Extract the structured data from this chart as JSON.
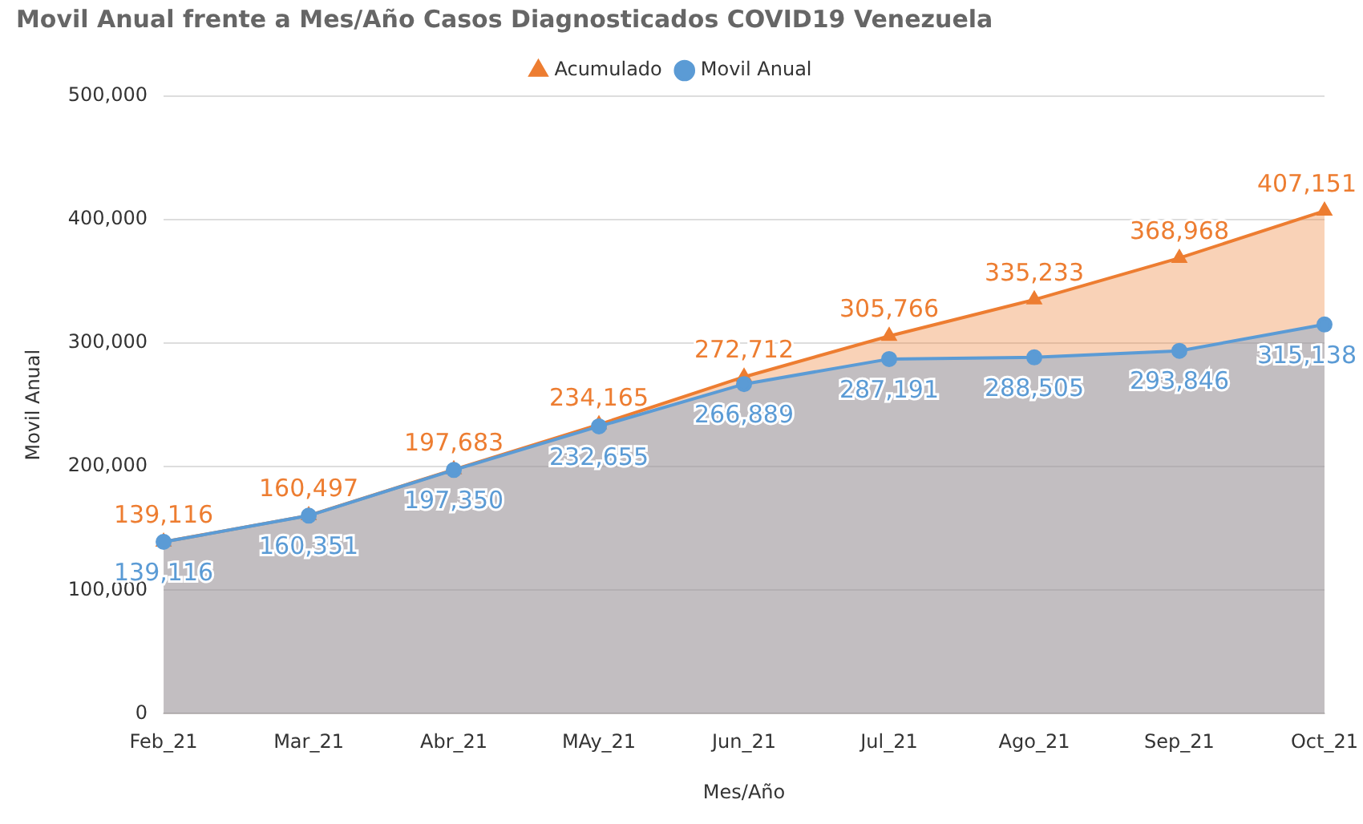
{
  "chart_data": {
    "type": "area",
    "title": "Movil Anual frente a Mes/Año Casos Diagnosticados COVID19 Venezuela",
    "xlabel": "Mes/Año",
    "ylabel": "Movil Anual",
    "categories": [
      "Feb_21",
      "Mar_21",
      "Abr_21",
      "MAy_21",
      "Jun_21",
      "Jul_21",
      "Ago_21",
      "Sep_21",
      "Oct_21"
    ],
    "series": [
      {
        "name": "Movil Anual",
        "color": "#5b9bd5",
        "marker": "circle",
        "values": [
          139116,
          160351,
          197350,
          232655,
          266889,
          287191,
          288505,
          293846,
          315138
        ],
        "value_labels": [
          "139,116",
          "160,351",
          "197,350",
          "232,655",
          "266,889",
          "287,191",
          "288,505",
          "293,846",
          "315,138"
        ]
      },
      {
        "name": "Acumulado",
        "color": "#ed7d31",
        "marker": "triangle",
        "values": [
          139116,
          160497,
          197683,
          234165,
          272712,
          305766,
          335233,
          368968,
          407151
        ],
        "value_labels": [
          "139,116",
          "160,497",
          "197,683",
          "234,165",
          "272,712",
          "305,766",
          "335,233",
          "368,968",
          "407,151"
        ]
      }
    ],
    "ylim": [
      0,
      500000
    ],
    "yticks": [
      {
        "value": 0,
        "label": "0"
      },
      {
        "value": 100000,
        "label": "100,000"
      },
      {
        "value": 200000,
        "label": "200,000"
      },
      {
        "value": 300000,
        "label": "300,000"
      },
      {
        "value": 400000,
        "label": "400,000"
      },
      {
        "value": 500000,
        "label": "500,000"
      }
    ],
    "grid": "y",
    "legend": "top"
  }
}
